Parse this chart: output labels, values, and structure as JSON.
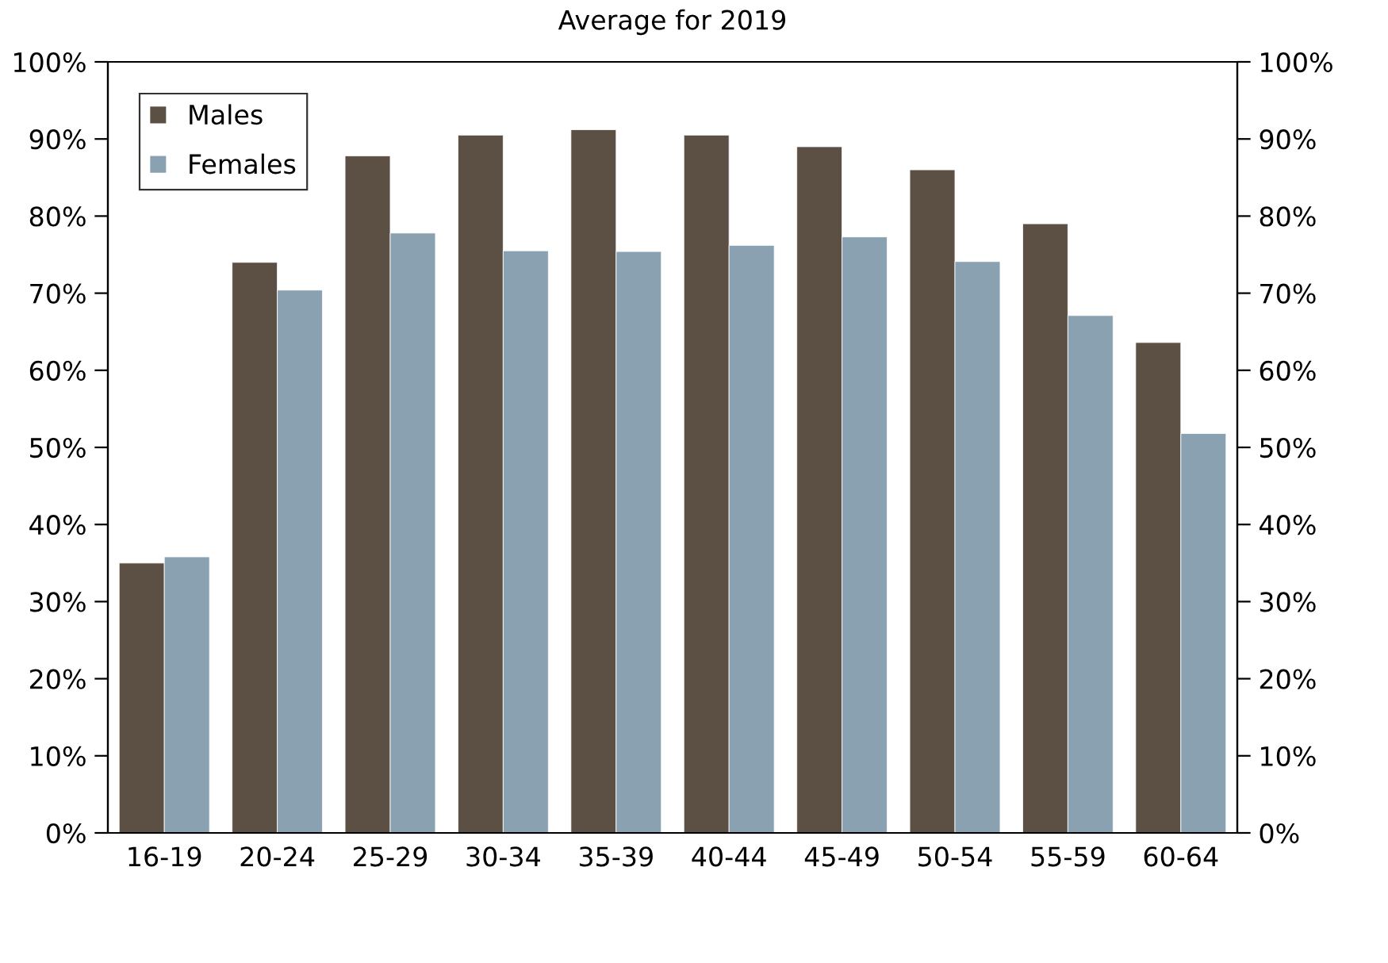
{
  "chart_data": {
    "type": "bar",
    "subtitle": "Average for 2019",
    "categories": [
      "16-19",
      "20-24",
      "25-29",
      "30-34",
      "35-39",
      "40-44",
      "45-49",
      "50-54",
      "55-59",
      "60-64"
    ],
    "series": [
      {
        "name": "Males",
        "color": "#5c5044",
        "values": [
          35.0,
          74.0,
          87.8,
          90.5,
          91.2,
          90.5,
          89.0,
          86.0,
          79.0,
          63.6
        ]
      },
      {
        "name": "Females",
        "color": "#8aa1b1",
        "values": [
          35.8,
          70.4,
          77.8,
          75.5,
          75.4,
          76.2,
          77.3,
          74.1,
          67.1,
          51.8
        ]
      }
    ],
    "ylim": [
      0,
      100
    ],
    "yticks": [
      {
        "value": 0,
        "label": "0%"
      },
      {
        "value": 10,
        "label": "10%"
      },
      {
        "value": 20,
        "label": "20%"
      },
      {
        "value": 30,
        "label": "30%"
      },
      {
        "value": 40,
        "label": "40%"
      },
      {
        "value": 50,
        "label": "50%"
      },
      {
        "value": 60,
        "label": "60%"
      },
      {
        "value": 70,
        "label": "70%"
      },
      {
        "value": 80,
        "label": "80%"
      },
      {
        "value": 90,
        "label": "90%"
      },
      {
        "value": 100,
        "label": "100%"
      }
    ],
    "y2lim": [
      0,
      100
    ],
    "y2ticks": [
      {
        "value": 0,
        "label": "0%"
      },
      {
        "value": 10,
        "label": "10%"
      },
      {
        "value": 20,
        "label": "20%"
      },
      {
        "value": 30,
        "label": "30%"
      },
      {
        "value": 40,
        "label": "40%"
      },
      {
        "value": 50,
        "label": "50%"
      },
      {
        "value": 60,
        "label": "60%"
      },
      {
        "value": 70,
        "label": "70%"
      },
      {
        "value": 80,
        "label": "80%"
      },
      {
        "value": 90,
        "label": "90%"
      },
      {
        "value": 100,
        "label": "100%"
      }
    ],
    "grid": false,
    "legend": "top left"
  }
}
